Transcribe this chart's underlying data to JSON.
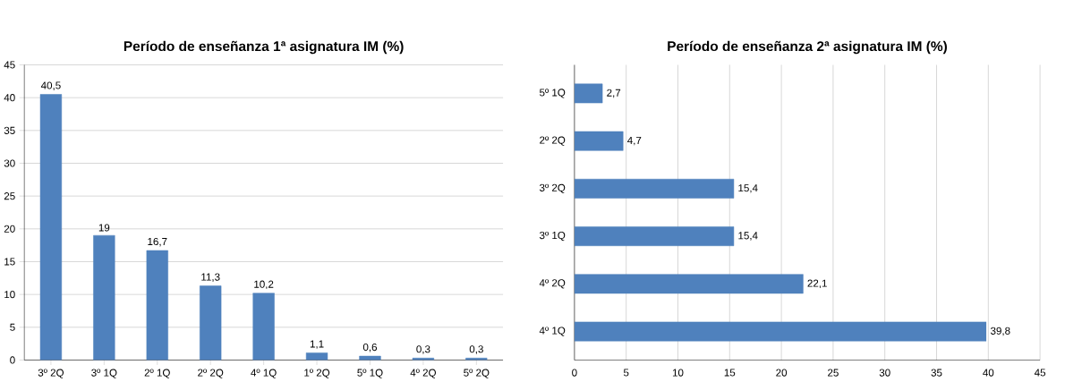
{
  "chart_data": [
    {
      "type": "bar",
      "title": "Período de enseñanza 1ª asignatura IM (%)",
      "categories": [
        "3º 2Q",
        "3º 1Q",
        "2º 1Q",
        "2º 2Q",
        "4º 1Q",
        "1º 2Q",
        "5º 1Q",
        "4º 2Q",
        "5º 2Q"
      ],
      "values": [
        40.5,
        19,
        16.7,
        11.3,
        10.2,
        1.1,
        0.6,
        0.3,
        0.3
      ],
      "value_labels": [
        "40,5",
        "19",
        "16,7",
        "11,3",
        "10,2",
        "1,1",
        "0,6",
        "0,3",
        "0,3"
      ],
      "color": "#4f81bd",
      "ylim": [
        0,
        45
      ],
      "yticks": [
        0,
        5,
        10,
        15,
        20,
        25,
        30,
        35,
        40,
        45
      ],
      "grid": "y"
    },
    {
      "type": "bar",
      "orientation": "horizontal",
      "title": "Período de enseñanza 2ª asignatura IM (%)",
      "categories": [
        "5º 1Q",
        "2º 2Q",
        "3º 2Q",
        "3º 1Q",
        "4º 2Q",
        "4º 1Q"
      ],
      "values": [
        2.7,
        4.7,
        15.4,
        15.4,
        22.1,
        39.8
      ],
      "value_labels": [
        "2,7",
        "4,7",
        "15,4",
        "15,4",
        "22,1",
        "39,8"
      ],
      "color": "#4f81bd",
      "xlim": [
        0,
        45
      ],
      "xticks": [
        0,
        5,
        10,
        15,
        20,
        25,
        30,
        35,
        40,
        45
      ],
      "grid": "x"
    }
  ]
}
